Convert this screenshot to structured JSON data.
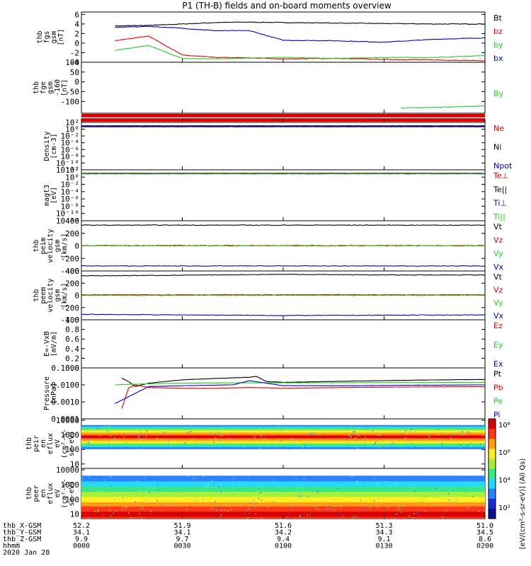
{
  "title": "P1  (TH-B) fields and on-board moments overview",
  "colors": {
    "black": "#000000",
    "red": "#e00000",
    "green": "#22cc22",
    "blue": "#0000cc"
  },
  "panels": [
    {
      "id": "fgs",
      "ylabel": [
        "thb",
        "fgs",
        "gsm",
        "[nT]"
      ],
      "ticks": [
        {
          "v": 6,
          "l": "6"
        },
        {
          "v": 4,
          "l": "4"
        },
        {
          "v": 2,
          "l": "2"
        },
        {
          "v": 0,
          "l": "0"
        },
        {
          "v": -2,
          "l": "-2"
        },
        {
          "v": -4,
          "l": "-4"
        }
      ],
      "legend": [
        {
          "t": "Bt",
          "c": "black"
        },
        {
          "t": "bz",
          "c": "red"
        },
        {
          "t": "by",
          "c": "green"
        },
        {
          "t": "bx",
          "c": "blue"
        }
      ]
    },
    {
      "id": "fge",
      "ylabel": [
        "thb",
        "fge",
        "gsm",
        "-160",
        "[nT]"
      ],
      "ticks": [
        {
          "v": 100,
          "l": "100"
        },
        {
          "v": 50,
          "l": "50"
        },
        {
          "v": 0,
          "l": "0"
        },
        {
          "v": -50,
          "l": "-50"
        },
        {
          "v": -100,
          "l": "-100"
        }
      ],
      "legend": [
        {
          "t": "By",
          "c": "green"
        }
      ]
    },
    {
      "id": "density",
      "ylabel": [
        "Density",
        "[cm-3]"
      ],
      "ticks": [
        {
          "v": 2,
          "l": "10²"
        },
        {
          "v": 0,
          "l": "10⁰"
        },
        {
          "v": -2,
          "l": "10⁻²"
        },
        {
          "v": -4,
          "l": "10⁻⁴"
        },
        {
          "v": -6,
          "l": "10⁻⁶"
        },
        {
          "v": -8,
          "l": "10⁻⁸"
        },
        {
          "v": -10,
          "l": "10⁻¹⁰"
        },
        {
          "v": -12,
          "l": "10⁻¹²"
        }
      ],
      "legend": [
        {
          "t": "Ne",
          "c": "red"
        },
        {
          "t": "Ni",
          "c": "black"
        },
        {
          "t": "Npot",
          "c": "blue"
        }
      ]
    },
    {
      "id": "temp",
      "ylabel": [
        "magt3",
        "[eV]"
      ],
      "ticks": [
        {
          "v": 2,
          "l": "10²"
        },
        {
          "v": 0,
          "l": "10⁰"
        },
        {
          "v": -2,
          "l": "10⁻²"
        },
        {
          "v": -4,
          "l": "10⁻⁴"
        },
        {
          "v": -6,
          "l": "10⁻⁶"
        },
        {
          "v": -8,
          "l": "10⁻⁸"
        },
        {
          "v": -10,
          "l": "10⁻¹⁰"
        },
        {
          "v": -12,
          "l": "10⁻¹²"
        }
      ],
      "legend": [
        {
          "t": "Te⊥",
          "c": "red"
        },
        {
          "t": "Te||",
          "c": "black"
        },
        {
          "t": "Ti⊥",
          "c": "blue"
        },
        {
          "t": "Ti||",
          "c": "green"
        }
      ]
    },
    {
      "id": "peim",
      "ylabel": [
        "thb",
        "peim",
        "velocity",
        "gsm",
        "[km/s]"
      ],
      "ticks": [
        {
          "v": 400,
          "l": "400"
        },
        {
          "v": 200,
          "l": "200"
        },
        {
          "v": 0,
          "l": "0"
        },
        {
          "v": -200,
          "l": "-200"
        },
        {
          "v": -400,
          "l": "-400"
        }
      ],
      "legend": [
        {
          "t": "Vt",
          "c": "black"
        },
        {
          "t": "Vz",
          "c": "red"
        },
        {
          "t": "Vy",
          "c": "green"
        },
        {
          "t": "Vx",
          "c": "blue"
        }
      ]
    },
    {
      "id": "peem",
      "ylabel": [
        "thb",
        "peem",
        "velocity",
        "gsm",
        "[km/s]"
      ],
      "ticks": [
        {
          "v": 400,
          "l": "400"
        },
        {
          "v": 200,
          "l": "200"
        },
        {
          "v": 0,
          "l": "0"
        },
        {
          "v": -200,
          "l": "-200"
        },
        {
          "v": -400,
          "l": "-400"
        }
      ],
      "legend": [
        {
          "t": "Vt",
          "c": "black"
        },
        {
          "t": "Vz",
          "c": "red"
        },
        {
          "t": "Vy",
          "c": "green"
        },
        {
          "t": "Vx",
          "c": "blue"
        }
      ]
    },
    {
      "id": "efield",
      "ylabel": [
        "E=-VxB",
        "[mV/m]"
      ],
      "ticks": [
        {
          "v": 1.0,
          "l": "1.0"
        },
        {
          "v": 0.8,
          "l": "0.8"
        },
        {
          "v": 0.6,
          "l": "0.6"
        },
        {
          "v": 0.4,
          "l": "0.4"
        },
        {
          "v": 0.2,
          "l": "0.2"
        },
        {
          "v": 0.0,
          "l": "0.0"
        }
      ],
      "legend": [
        {
          "t": "Ez",
          "c": "red"
        },
        {
          "t": "Ey",
          "c": "green"
        },
        {
          "t": "Ex",
          "c": "blue"
        }
      ]
    },
    {
      "id": "pressure",
      "ylabel": [
        "Pressure",
        "[nPa]"
      ],
      "ticks": [
        {
          "v": -1,
          "l": "0.1000"
        },
        {
          "v": -2,
          "l": "0.0100"
        },
        {
          "v": -3,
          "l": "0.0010"
        },
        {
          "v": -4,
          "l": "0.0001"
        }
      ],
      "legend": [
        {
          "t": "Pt",
          "c": "black"
        },
        {
          "t": "Pb",
          "c": "red"
        },
        {
          "t": "Pe",
          "c": "green"
        },
        {
          "t": "Pi",
          "c": "blue"
        }
      ]
    },
    {
      "id": "peir",
      "ylabel": [
        "thb",
        "peir",
        "en",
        "eflux",
        "eV",
        "(cm²-s-",
        "sr-eV)"
      ],
      "ticks": [
        {
          "v": 4,
          "l": "10000"
        },
        {
          "v": 3,
          "l": "1000"
        },
        {
          "v": 2,
          "l": "100"
        },
        {
          "v": 1,
          "l": "10"
        }
      ]
    },
    {
      "id": "peer",
      "ylabel": [
        "thb",
        "peer",
        "en",
        "eflux",
        "eV",
        "(cm²-s-",
        "sr-eV)"
      ],
      "ticks": [
        {
          "v": 4,
          "l": "10000"
        },
        {
          "v": 3,
          "l": "1000"
        },
        {
          "v": 2,
          "l": "100"
        },
        {
          "v": 1,
          "l": "10"
        }
      ]
    }
  ],
  "colorbar": {
    "label": "[eV/(cm²-s-sr-eV)]  (All Qs)",
    "ticks": [
      "10⁸",
      "10⁶",
      "10⁴",
      "10²"
    ]
  },
  "x_axis": {
    "row_labels": [
      "thb_X-GSM",
      "thb_Y-GSM",
      "thb_Z-GSM",
      "hhmm",
      "2020 Jan 28"
    ],
    "ticks": [
      {
        "X": "52.2",
        "Y": "34.1",
        "Z": "9.9",
        "hhmm": "0000"
      },
      {
        "X": "51.9",
        "Y": "34.1",
        "Z": "9.7",
        "hhmm": "0030"
      },
      {
        "X": "51.6",
        "Y": "34.2",
        "Z": "9.4",
        "hhmm": "0100"
      },
      {
        "X": "51.3",
        "Y": "34.3",
        "Z": "9.1",
        "hhmm": "0130"
      },
      {
        "X": "51.0",
        "Y": "34.5",
        "Z": "8.6",
        "hhmm": "0200"
      }
    ]
  },
  "chart_data": {
    "type": "line",
    "title": "P1  (TH-B) fields and on-board moments overview",
    "x_unit": "minutes since 0000 UT",
    "x_range": [
      0,
      120
    ],
    "panels": {
      "fgs": {
        "ylim": [
          -4,
          6.5
        ],
        "series": [
          {
            "name": "Bt",
            "color": "black",
            "x": [
              10,
              20,
              30,
              40,
              48,
              60,
              75,
              90,
              105,
              120
            ],
            "y": [
              3.6,
              3.7,
              4.0,
              4.3,
              4.4,
              4.3,
              4.2,
              4.1,
              4.0,
              4.0
            ]
          },
          {
            "name": "bz",
            "color": "red",
            "x": [
              10,
              20,
              30,
              40,
              50,
              60,
              75,
              90,
              105,
              120
            ],
            "y": [
              0.5,
              1.5,
              -2.5,
              -3.0,
              -3.1,
              -3.3,
              -3.2,
              -3.4,
              -3.5,
              -3.7
            ]
          },
          {
            "name": "by",
            "color": "green",
            "x": [
              10,
              20,
              30,
              40,
              50,
              60,
              75,
              90,
              105,
              120
            ],
            "y": [
              -1.5,
              -0.5,
              -3.2,
              -3.3,
              -3.1,
              -3.0,
              -3.2,
              -3.0,
              -3.0,
              -2.6
            ]
          },
          {
            "name": "bx",
            "color": "blue",
            "x": [
              10,
              20,
              30,
              40,
              50,
              60,
              75,
              90,
              105,
              120
            ],
            "y": [
              3.3,
              3.5,
              3.1,
              2.6,
              2.6,
              0.6,
              0.5,
              0.2,
              0.8,
              1.1
            ]
          }
        ]
      },
      "fge": {
        "ylim": [
          -160,
          100
        ],
        "series": [
          {
            "name": "By",
            "color": "green",
            "x": [
              95,
              100,
              110,
              120
            ],
            "y": [
              -133,
              -132,
              -128,
              -122
            ]
          }
        ]
      },
      "density": {
        "ylim": [
          -12,
          2
        ],
        "log": true,
        "series": [
          {
            "name": "Ne",
            "color": "red",
            "x": [
              0,
              120
            ],
            "y": [
              0.9,
              0.9
            ]
          },
          {
            "name": "Ni",
            "color": "black",
            "x": [
              0,
              120
            ],
            "y": [
              1.0,
              1.0
            ]
          },
          {
            "name": "Npot",
            "color": "blue",
            "x": [
              0,
              120
            ],
            "y": [
              0.7,
              0.7
            ]
          }
        ]
      },
      "temp": {
        "ylim": [
          -12,
          2
        ],
        "log": true,
        "series": [
          {
            "name": "Te⊥",
            "color": "red",
            "x": [
              0,
              120
            ],
            "y": [
              1.1,
              1.1
            ]
          },
          {
            "name": "Te||",
            "color": "black",
            "x": [
              0,
              120
            ],
            "y": [
              1.0,
              1.0
            ]
          },
          {
            "name": "Ti⊥",
            "color": "blue",
            "x": [
              0,
              120
            ],
            "y": [
              0.9,
              0.9
            ]
          },
          {
            "name": "Ti||",
            "color": "green",
            "x": [
              0,
              120
            ],
            "y": [
              1.0,
              1.0
            ]
          }
        ]
      },
      "peim": {
        "ylim": [
          -400,
          400
        ],
        "series": [
          {
            "name": "Vt",
            "color": "black",
            "x": [
              0,
              120
            ],
            "y": [
              330,
              330
            ]
          },
          {
            "name": "Vz",
            "color": "red",
            "x": [
              0,
              120
            ],
            "y": [
              5,
              5
            ]
          },
          {
            "name": "Vy",
            "color": "green",
            "x": [
              0,
              120
            ],
            "y": [
              0,
              0
            ]
          },
          {
            "name": "Vx",
            "color": "blue",
            "x": [
              0,
              120
            ],
            "y": [
              -320,
              -320
            ]
          }
        ]
      },
      "peem": {
        "ylim": [
          -400,
          400
        ],
        "series": [
          {
            "name": "Vt",
            "color": "black",
            "x": [
              0,
              30,
              60,
              90,
              120
            ],
            "y": [
              320,
              330,
              345,
              335,
              335
            ]
          },
          {
            "name": "Vz",
            "color": "red",
            "x": [
              0,
              120
            ],
            "y": [
              10,
              10
            ]
          },
          {
            "name": "Vy",
            "color": "green",
            "x": [
              0,
              120
            ],
            "y": [
              0,
              0
            ]
          },
          {
            "name": "Vx",
            "color": "blue",
            "x": [
              0,
              30,
              60,
              90,
              120
            ],
            "y": [
              -310,
              -320,
              -330,
              -325,
              -320
            ]
          }
        ]
      },
      "efield": {
        "ylim": [
          0,
          1.0
        ],
        "series": []
      },
      "pressure": {
        "ylim": [
          -4,
          -1
        ],
        "log": true,
        "series": [
          {
            "name": "Pt",
            "color": "black",
            "x": [
              12,
              14,
              16,
              20,
              30,
              40,
              50,
              52,
              55,
              60,
              80,
              100,
              120
            ],
            "y": [
              -1.6,
              -1.8,
              -2.1,
              -1.9,
              -1.7,
              -1.62,
              -1.55,
              -1.5,
              -1.8,
              -1.85,
              -1.78,
              -1.72,
              -1.68
            ]
          },
          {
            "name": "Pb",
            "color": "red",
            "x": [
              12,
              14,
              16,
              20,
              30,
              40,
              50,
              60,
              80,
              100,
              120
            ],
            "y": [
              -3.4,
              -2.2,
              -2.0,
              -2.15,
              -2.2,
              -2.2,
              -2.15,
              -2.2,
              -2.15,
              -2.12,
              -2.1
            ]
          },
          {
            "name": "Pe",
            "color": "green",
            "x": [
              10,
              20,
              30,
              45,
              60,
              80,
              100,
              120
            ],
            "y": [
              -2.0,
              -1.93,
              -1.9,
              -1.88,
              -1.88,
              -1.87,
              -1.86,
              -1.85
            ]
          },
          {
            "name": "Pi",
            "color": "blue",
            "x": [
              10,
              20,
              30,
              45,
              50,
              55,
              60,
              80,
              100,
              120
            ],
            "y": [
              -3.1,
              -2.1,
              -2.05,
              -2.0,
              -1.75,
              -1.9,
              -2.05,
              -2.05,
              -2.02,
              -2.0
            ]
          }
        ]
      },
      "peir": {
        "type": "heatmap",
        "ylim_log": [
          0.7,
          4.1
        ],
        "energy_peak_log": 2.9,
        "active_log_range": [
          2.05,
          3.7
        ]
      },
      "peer": {
        "type": "heatmap",
        "ylim_log": [
          0.7,
          4.1
        ],
        "energy_peak_log": 1.0,
        "active_log_range": [
          0.7,
          3.6
        ]
      }
    }
  }
}
